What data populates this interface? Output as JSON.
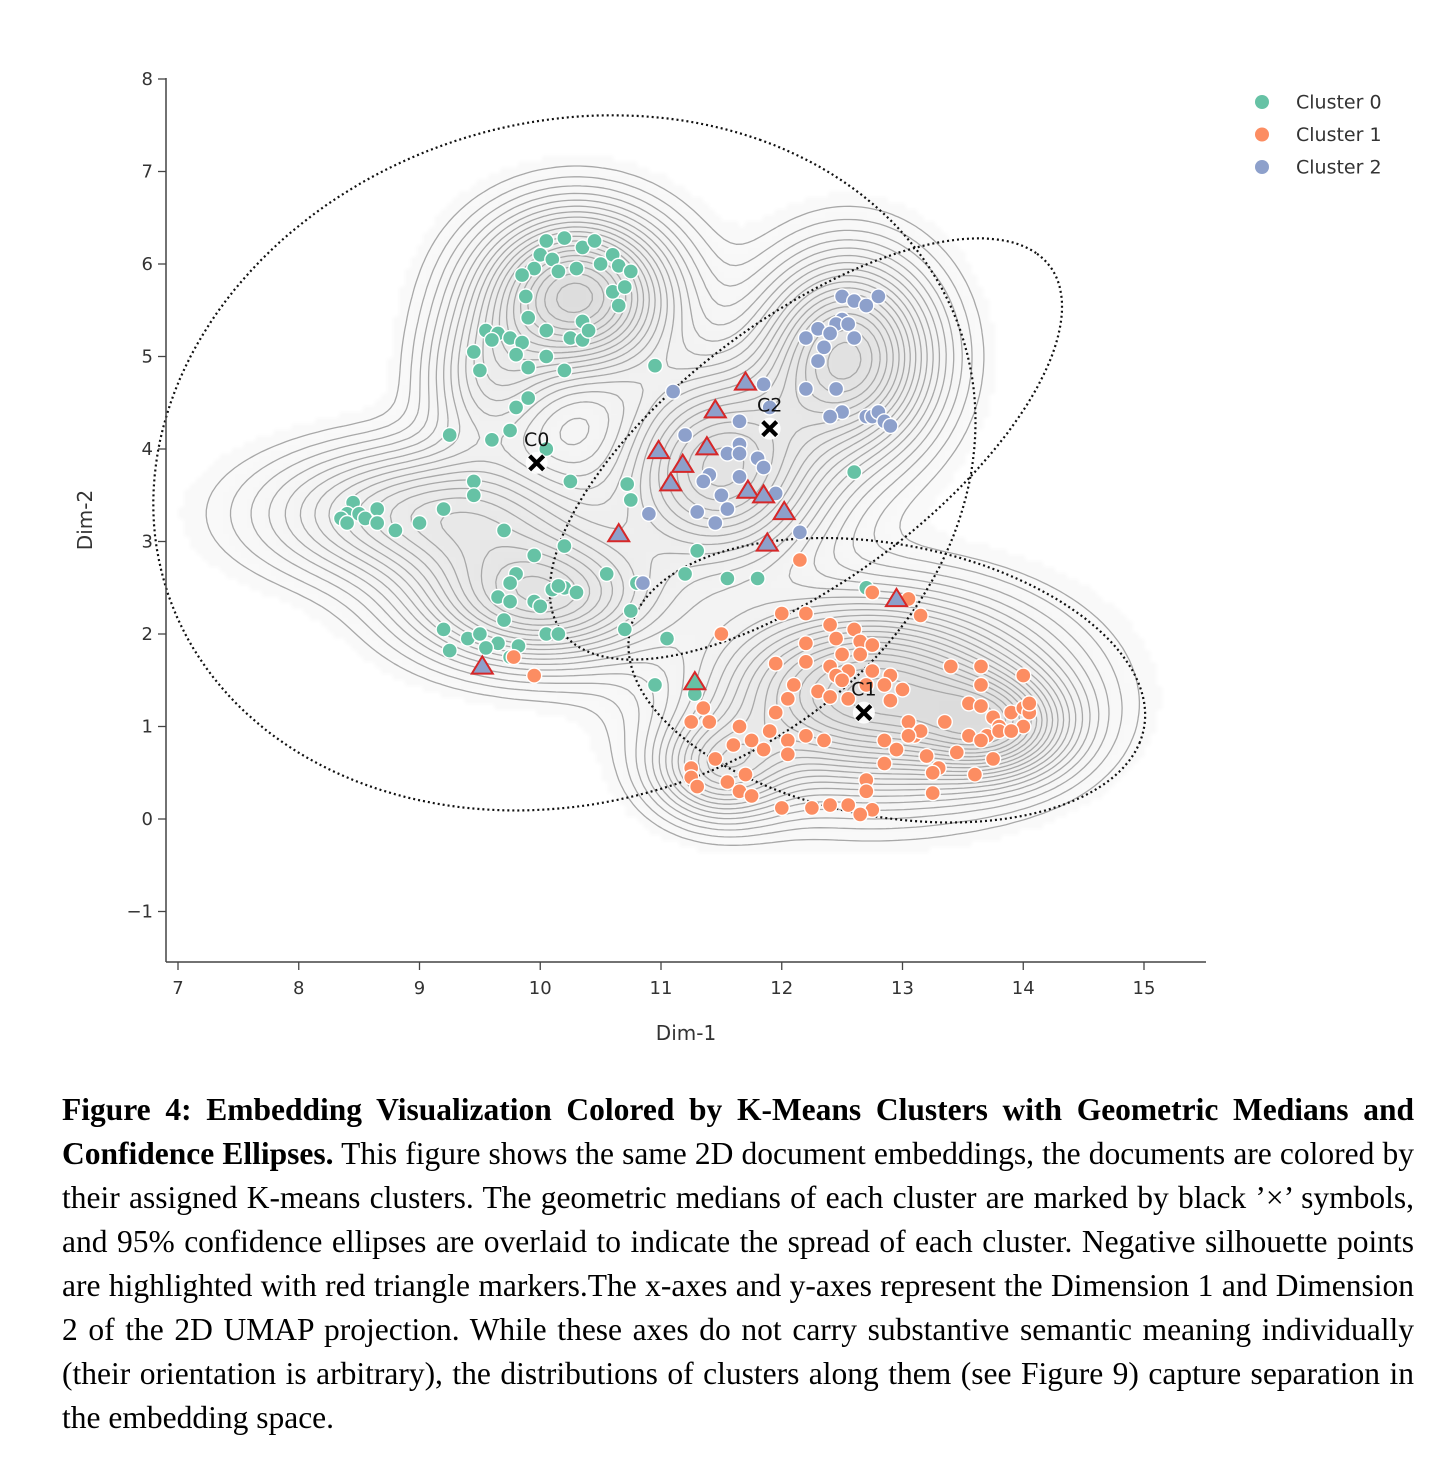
{
  "chart_data": {
    "type": "scatter",
    "xlabel": "Dim-1",
    "ylabel": "Dim-2",
    "xlim": [
      6.9,
      15.5
    ],
    "ylim": [
      -1.5,
      8
    ],
    "xticks": [
      "7",
      "8",
      "9",
      "10",
      "11",
      "12",
      "13",
      "14",
      "15"
    ],
    "yticks": [
      "−1",
      "0",
      "1",
      "2",
      "3",
      "4",
      "5",
      "6",
      "7",
      "8"
    ],
    "legend_position": "top-right",
    "series": [
      {
        "name": "Cluster 0",
        "color": "#66c2a5",
        "points": [
          [
            10.05,
            6.25
          ],
          [
            10.2,
            6.28
          ],
          [
            10.35,
            6.18
          ],
          [
            10.45,
            6.25
          ],
          [
            10.0,
            6.1
          ],
          [
            10.1,
            6.05
          ],
          [
            9.95,
            5.95
          ],
          [
            10.15,
            5.92
          ],
          [
            10.3,
            5.95
          ],
          [
            10.5,
            6.0
          ],
          [
            10.6,
            6.1
          ],
          [
            10.65,
            5.98
          ],
          [
            10.75,
            5.92
          ],
          [
            9.85,
            5.88
          ],
          [
            10.6,
            5.7
          ],
          [
            10.7,
            5.75
          ],
          [
            9.88,
            5.65
          ],
          [
            10.65,
            5.55
          ],
          [
            9.9,
            5.42
          ],
          [
            10.35,
            5.38
          ],
          [
            10.05,
            5.28
          ],
          [
            10.25,
            5.2
          ],
          [
            9.55,
            5.28
          ],
          [
            9.65,
            5.25
          ],
          [
            9.75,
            5.2
          ],
          [
            9.6,
            5.18
          ],
          [
            9.85,
            5.15
          ],
          [
            10.35,
            5.18
          ],
          [
            10.4,
            5.28
          ],
          [
            9.45,
            5.05
          ],
          [
            9.8,
            5.02
          ],
          [
            10.05,
            5.0
          ],
          [
            9.5,
            4.85
          ],
          [
            9.9,
            4.88
          ],
          [
            10.2,
            4.85
          ],
          [
            10.95,
            4.9
          ],
          [
            9.9,
            4.55
          ],
          [
            9.8,
            4.45
          ],
          [
            9.25,
            4.15
          ],
          [
            9.75,
            4.2
          ],
          [
            9.6,
            4.1
          ],
          [
            10.05,
            4.0
          ],
          [
            9.45,
            3.65
          ],
          [
            10.25,
            3.65
          ],
          [
            9.45,
            3.5
          ],
          [
            8.45,
            3.42
          ],
          [
            8.4,
            3.3
          ],
          [
            8.5,
            3.3
          ],
          [
            8.65,
            3.35
          ],
          [
            8.35,
            3.25
          ],
          [
            8.4,
            3.2
          ],
          [
            8.55,
            3.25
          ],
          [
            8.65,
            3.2
          ],
          [
            8.8,
            3.12
          ],
          [
            9.0,
            3.2
          ],
          [
            9.2,
            3.35
          ],
          [
            9.7,
            3.12
          ],
          [
            10.75,
            3.45
          ],
          [
            10.72,
            3.62
          ],
          [
            11.3,
            2.9
          ],
          [
            9.95,
            2.85
          ],
          [
            10.2,
            2.95
          ],
          [
            10.55,
            2.65
          ],
          [
            10.8,
            2.55
          ],
          [
            10.85,
            2.55
          ],
          [
            11.2,
            2.65
          ],
          [
            11.55,
            2.6
          ],
          [
            11.8,
            2.6
          ],
          [
            9.8,
            2.65
          ],
          [
            9.75,
            2.55
          ],
          [
            10.1,
            2.48
          ],
          [
            10.2,
            2.5
          ],
          [
            10.3,
            2.45
          ],
          [
            10.15,
            2.52
          ],
          [
            9.65,
            2.4
          ],
          [
            9.75,
            2.35
          ],
          [
            9.95,
            2.35
          ],
          [
            10.0,
            2.3
          ],
          [
            9.7,
            2.15
          ],
          [
            10.75,
            2.25
          ],
          [
            9.2,
            2.05
          ],
          [
            9.4,
            1.95
          ],
          [
            9.5,
            2.0
          ],
          [
            9.65,
            1.9
          ],
          [
            9.82,
            1.87
          ],
          [
            10.05,
            2.0
          ],
          [
            10.15,
            2.0
          ],
          [
            10.7,
            2.05
          ],
          [
            11.05,
            1.95
          ],
          [
            9.25,
            1.82
          ],
          [
            9.55,
            1.85
          ],
          [
            9.75,
            1.75
          ],
          [
            10.95,
            1.45
          ],
          [
            11.28,
            1.35
          ],
          [
            12.7,
            2.5
          ],
          [
            12.6,
            3.75
          ]
        ]
      },
      {
        "name": "Cluster 1",
        "color": "#fc8d62",
        "points": [
          [
            12.15,
            2.8
          ],
          [
            12.75,
            2.45
          ],
          [
            13.05,
            2.38
          ],
          [
            13.15,
            2.2
          ],
          [
            12.0,
            2.22
          ],
          [
            12.2,
            2.22
          ],
          [
            12.4,
            2.1
          ],
          [
            12.6,
            2.05
          ],
          [
            11.5,
            2.0
          ],
          [
            12.2,
            1.9
          ],
          [
            12.45,
            1.95
          ],
          [
            12.65,
            1.92
          ],
          [
            12.75,
            1.88
          ],
          [
            12.5,
            1.78
          ],
          [
            12.65,
            1.78
          ],
          [
            12.2,
            1.7
          ],
          [
            12.4,
            1.65
          ],
          [
            12.55,
            1.6
          ],
          [
            12.75,
            1.6
          ],
          [
            12.9,
            1.55
          ],
          [
            11.95,
            1.68
          ],
          [
            12.45,
            1.55
          ],
          [
            12.5,
            1.5
          ],
          [
            12.7,
            1.45
          ],
          [
            12.85,
            1.45
          ],
          [
            13.0,
            1.4
          ],
          [
            12.1,
            1.45
          ],
          [
            12.3,
            1.38
          ],
          [
            12.05,
            1.3
          ],
          [
            12.4,
            1.32
          ],
          [
            12.55,
            1.3
          ],
          [
            12.9,
            1.28
          ],
          [
            11.95,
            1.15
          ],
          [
            13.05,
            1.05
          ],
          [
            13.35,
            1.05
          ],
          [
            11.25,
            1.05
          ],
          [
            11.4,
            1.05
          ],
          [
            11.35,
            1.2
          ],
          [
            11.65,
            1.0
          ],
          [
            11.9,
            0.95
          ],
          [
            12.05,
            0.85
          ],
          [
            12.35,
            0.85
          ],
          [
            12.85,
            0.85
          ],
          [
            13.1,
            0.9
          ],
          [
            13.55,
            1.25
          ],
          [
            13.65,
            1.22
          ],
          [
            13.75,
            1.1
          ],
          [
            13.8,
            1.0
          ],
          [
            13.9,
            1.15
          ],
          [
            14.0,
            1.2
          ],
          [
            14.05,
            1.15
          ],
          [
            14.0,
            1.0
          ],
          [
            14.05,
            1.25
          ],
          [
            13.55,
            0.9
          ],
          [
            13.7,
            0.9
          ],
          [
            13.8,
            0.95
          ],
          [
            13.9,
            0.95
          ],
          [
            14.0,
            1.55
          ],
          [
            13.65,
            1.45
          ],
          [
            13.65,
            1.65
          ],
          [
            13.4,
            1.65
          ],
          [
            13.15,
            0.95
          ],
          [
            13.05,
            0.9
          ],
          [
            11.75,
            0.85
          ],
          [
            11.6,
            0.8
          ],
          [
            11.85,
            0.75
          ],
          [
            12.05,
            0.7
          ],
          [
            12.95,
            0.75
          ],
          [
            13.2,
            0.68
          ],
          [
            13.45,
            0.72
          ],
          [
            13.65,
            0.85
          ],
          [
            13.75,
            0.65
          ],
          [
            13.3,
            0.55
          ],
          [
            13.25,
            0.5
          ],
          [
            13.6,
            0.48
          ],
          [
            12.85,
            0.6
          ],
          [
            11.45,
            0.65
          ],
          [
            11.25,
            0.55
          ],
          [
            11.25,
            0.45
          ],
          [
            11.7,
            0.48
          ],
          [
            11.55,
            0.4
          ],
          [
            11.3,
            0.35
          ],
          [
            11.65,
            0.3
          ],
          [
            11.75,
            0.25
          ],
          [
            12.7,
            0.42
          ],
          [
            12.7,
            0.3
          ],
          [
            13.25,
            0.28
          ],
          [
            12.0,
            0.12
          ],
          [
            12.25,
            0.12
          ],
          [
            12.4,
            0.15
          ],
          [
            12.55,
            0.15
          ],
          [
            12.75,
            0.1
          ],
          [
            12.65,
            0.05
          ],
          [
            9.78,
            1.75
          ],
          [
            9.95,
            1.55
          ],
          [
            12.2,
            0.9
          ]
        ]
      },
      {
        "name": "Cluster 2",
        "color": "#8da0cb",
        "points": [
          [
            12.5,
            5.65
          ],
          [
            12.8,
            5.65
          ],
          [
            12.6,
            5.6
          ],
          [
            12.7,
            5.55
          ],
          [
            12.5,
            5.4
          ],
          [
            12.45,
            5.35
          ],
          [
            12.55,
            5.35
          ],
          [
            12.3,
            5.3
          ],
          [
            12.4,
            5.25
          ],
          [
            12.2,
            5.2
          ],
          [
            12.35,
            5.1
          ],
          [
            12.6,
            5.2
          ],
          [
            12.3,
            4.95
          ],
          [
            12.2,
            4.65
          ],
          [
            12.45,
            4.65
          ],
          [
            12.5,
            4.4
          ],
          [
            12.7,
            4.35
          ],
          [
            12.75,
            4.35
          ],
          [
            12.8,
            4.4
          ],
          [
            12.85,
            4.3
          ],
          [
            12.9,
            4.25
          ],
          [
            12.4,
            4.35
          ],
          [
            11.1,
            4.62
          ],
          [
            11.85,
            4.7
          ],
          [
            11.9,
            4.45
          ],
          [
            11.65,
            4.3
          ],
          [
            11.2,
            4.15
          ],
          [
            11.65,
            4.05
          ],
          [
            11.55,
            3.95
          ],
          [
            11.65,
            3.95
          ],
          [
            11.8,
            3.9
          ],
          [
            11.85,
            3.8
          ],
          [
            11.4,
            3.72
          ],
          [
            11.35,
            3.65
          ],
          [
            11.65,
            3.7
          ],
          [
            11.5,
            3.5
          ],
          [
            11.95,
            3.52
          ],
          [
            10.9,
            3.3
          ],
          [
            11.3,
            3.32
          ],
          [
            11.55,
            3.35
          ],
          [
            11.45,
            3.2
          ],
          [
            12.15,
            3.1
          ],
          [
            10.85,
            2.55
          ]
        ]
      }
    ],
    "negative_silhouette": {
      "name": "Negative silhouette",
      "marker": "triangle",
      "edge_color": "#d62728",
      "points": [
        [
          11.7,
          4.72,
          "#8da0cb"
        ],
        [
          11.45,
          4.42,
          "#8da0cb"
        ],
        [
          10.98,
          3.98,
          "#8da0cb"
        ],
        [
          11.38,
          4.02,
          "#8da0cb"
        ],
        [
          11.18,
          3.83,
          "#8da0cb"
        ],
        [
          11.08,
          3.63,
          "#8da0cb"
        ],
        [
          11.72,
          3.55,
          "#8da0cb"
        ],
        [
          11.85,
          3.5,
          "#8da0cb"
        ],
        [
          12.02,
          3.32,
          "#8da0cb"
        ],
        [
          11.88,
          2.98,
          "#8da0cb"
        ],
        [
          10.65,
          3.08,
          "#8da0cb"
        ],
        [
          12.95,
          2.38,
          "#8da0cb"
        ],
        [
          9.52,
          1.65,
          "#8da0cb"
        ],
        [
          11.28,
          1.48,
          "#66c2a5"
        ]
      ]
    },
    "medians": [
      {
        "label": "C0",
        "x": 9.97,
        "y": 3.85
      },
      {
        "label": "C1",
        "x": 12.68,
        "y": 1.15
      },
      {
        "label": "C2",
        "x": 11.9,
        "y": 4.22
      }
    ],
    "confidence_ellipses": [
      {
        "cluster": "C0",
        "center": [
          10.2,
          3.85
        ],
        "semi_axes": [
          3.85,
          3.3
        ],
        "angle_deg": 65
      },
      {
        "cluster": "C1",
        "center": [
          12.87,
          1.5
        ],
        "semi_axes": [
          2.2,
          1.45
        ],
        "angle_deg": -18
      },
      {
        "cluster": "C2",
        "center": [
          12.2,
          4.0
        ],
        "semi_axes": [
          2.85,
          1.25
        ],
        "angle_deg": 48
      }
    ],
    "density_peaks": [
      {
        "x": 10.3,
        "y": 5.65,
        "sx": 0.5,
        "sy": 0.55,
        "w": 1.0
      },
      {
        "x": 9.2,
        "y": 3.3,
        "sx": 0.85,
        "sy": 0.45,
        "w": 0.55
      },
      {
        "x": 10.0,
        "y": 2.4,
        "sx": 0.65,
        "sy": 0.45,
        "w": 0.75
      },
      {
        "x": 11.5,
        "y": 3.8,
        "sx": 0.55,
        "sy": 0.7,
        "w": 0.8
      },
      {
        "x": 12.55,
        "y": 5.0,
        "sx": 0.45,
        "sy": 0.65,
        "w": 0.85
      },
      {
        "x": 12.75,
        "y": 1.35,
        "sx": 0.85,
        "sy": 0.62,
        "w": 1.0
      },
      {
        "x": 13.75,
        "y": 1.0,
        "sx": 0.4,
        "sy": 0.35,
        "w": 0.55
      },
      {
        "x": 11.5,
        "y": 0.55,
        "sx": 0.35,
        "sy": 0.35,
        "w": 0.45
      },
      {
        "x": 9.6,
        "y": 4.7,
        "sx": 0.35,
        "sy": 0.55,
        "w": 0.35
      }
    ]
  },
  "caption": {
    "label": "Figure 4:",
    "title": "Embedding Visualization Colored by K-Means Clusters with Geometric Medians and Confidence Ellipses.",
    "body": "This figure shows the same 2D document embeddings, the documents are colored by their assigned K-means clusters.  The geometric medians of each cluster are marked by black ’×’ symbols, and 95% confidence ellipses are overlaid to indicate the spread of each cluster. Negative silhouette points are highlighted with red triangle markers.The x-axes and y-axes represent the Dimension 1 and Dimension 2 of the 2D UMAP projection. While these axes do not carry substantive semantic meaning individually (their orientation is arbitrary), the distributions of clusters along them (see Figure 9) capture separation in the embedding space."
  }
}
